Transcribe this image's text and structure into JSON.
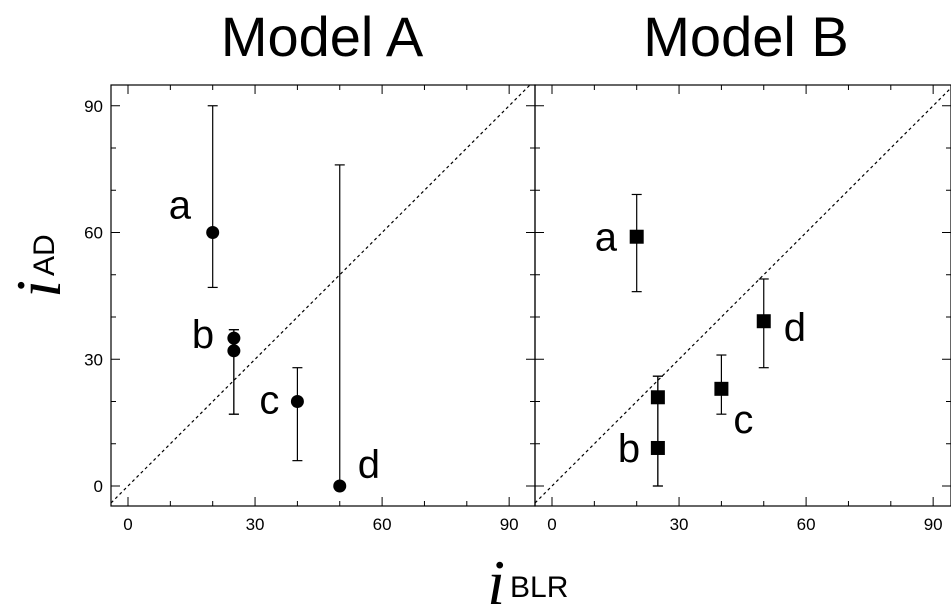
{
  "chart_data": [
    {
      "type": "scatter",
      "title": "Model A",
      "xlabel_var": "i",
      "xlabel_sub": "BLR",
      "ylabel_var": "i",
      "ylabel_sub": "AD",
      "xlim": [
        -4,
        96
      ],
      "ylim": [
        -4,
        96
      ],
      "xticks": [
        0,
        30,
        60,
        90
      ],
      "yticks": [
        0,
        30,
        60,
        90
      ],
      "marker": "circle",
      "reference_line": "y = x (dashed)",
      "points": [
        {
          "label": "a",
          "x": 20,
          "y": 60,
          "err_low": 47,
          "err_high": 90
        },
        {
          "label": "b",
          "x": 25,
          "y": 35,
          "err_low": 17,
          "err_high": 37
        },
        {
          "label": "",
          "x": 25,
          "y": 32,
          "err_low": 17,
          "err_high": 37
        },
        {
          "label": "c",
          "x": 40,
          "y": 20,
          "err_low": 6,
          "err_high": 28
        },
        {
          "label": "d",
          "x": 50,
          "y": 0,
          "err_low": 0,
          "err_high": 76
        }
      ]
    },
    {
      "type": "scatter",
      "title": "Model B",
      "xlim": [
        -4,
        96
      ],
      "ylim": [
        -4,
        96
      ],
      "xticks": [
        0,
        30,
        60,
        90
      ],
      "yticks": [
        0,
        30,
        60,
        90
      ],
      "marker": "square",
      "reference_line": "y = x (dashed)",
      "points": [
        {
          "label": "a",
          "x": 20,
          "y": 59,
          "err_low": 46,
          "err_high": 69
        },
        {
          "label": "",
          "x": 25,
          "y": 21,
          "err_low": 0,
          "err_high": 26
        },
        {
          "label": "b",
          "x": 25,
          "y": 9,
          "err_low": 0,
          "err_high": 26
        },
        {
          "label": "c",
          "x": 40,
          "y": 23,
          "err_low": 17,
          "err_high": 31
        },
        {
          "label": "d",
          "x": 50,
          "y": 39,
          "err_low": 28,
          "err_high": 49
        }
      ]
    }
  ]
}
